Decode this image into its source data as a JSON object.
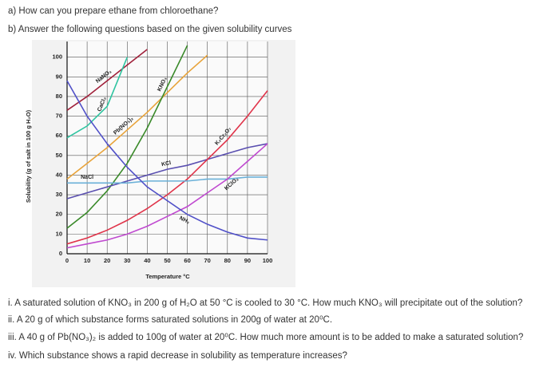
{
  "questions": {
    "a": "a) How can you prepare ethane from chloroethane?",
    "b": "b) Answer the following questions based on the given solubility curves",
    "items": [
      "i. A saturated solution of KNO₃ in 200 g of H₂O at 50 °C is cooled to 30 °C. How much KNO₃ will precipitate out of the solution?",
      "ii. A 20 g of which substance forms saturated solutions in 200g of water at 20⁰C.",
      "iii. A 40 g of Pb(NO₃)₂ is added to 100g of water at 20⁰C. How much more amount is to be added to make a saturated solution?",
      "iv. Which substance shows a rapid decrease in solubility as temperature increases?"
    ]
  },
  "chart_data": {
    "type": "line",
    "x_label": "Temperature °C",
    "y_label": "Solubility (g of salt in 100 g H₂O)",
    "x": [
      0,
      10,
      20,
      30,
      40,
      50,
      60,
      70,
      80,
      90,
      100
    ],
    "xlim": [
      0,
      100
    ],
    "xticks": [
      0,
      10,
      20,
      30,
      40,
      50,
      60,
      70,
      80,
      90,
      100
    ],
    "ylim": [
      0,
      108
    ],
    "yticks": [
      0,
      10,
      20,
      30,
      40,
      50,
      60,
      70,
      80,
      90,
      100
    ],
    "grid": true,
    "series": [
      {
        "name": "NaNO₃",
        "color": "#a0203a",
        "values": [
          73,
          80,
          88,
          96,
          104,
          null,
          null,
          null,
          null,
          null,
          null
        ]
      },
      {
        "name": "CaCl₂",
        "color": "#2ec4a0",
        "values": [
          59,
          65,
          75,
          100,
          null,
          null,
          null,
          null,
          null,
          null,
          null
        ]
      },
      {
        "name": "Pb(NO₃)₂",
        "color": "#e8a33a",
        "values": [
          38,
          46,
          54,
          63,
          72,
          82,
          92,
          101,
          null,
          null,
          null
        ]
      },
      {
        "name": "KNO₃",
        "color": "#3a8a2a",
        "values": [
          13,
          21,
          32,
          46,
          64,
          85,
          106,
          null,
          null,
          null,
          null
        ]
      },
      {
        "name": "KCl",
        "color": "#5a4fb0",
        "values": [
          28,
          31,
          34,
          37,
          40,
          43,
          45,
          48,
          51,
          54,
          56
        ]
      },
      {
        "name": "K₂Cr₂O₇",
        "color": "#e0344a",
        "values": [
          5,
          8,
          12,
          17,
          23,
          30,
          38,
          48,
          58,
          70,
          83
        ]
      },
      {
        "name": "NaCl",
        "color": "#6ab0d8",
        "values": [
          36,
          36,
          36,
          36,
          37,
          37,
          37,
          38,
          38,
          39,
          39
        ]
      },
      {
        "name": "KClO₃",
        "color": "#c04ad0",
        "values": [
          3,
          5,
          7,
          10,
          14,
          19,
          24,
          31,
          38,
          47,
          56
        ]
      },
      {
        "name": "NH₃",
        "color": "#5050c8",
        "values": [
          88,
          70,
          56,
          44,
          34,
          27,
          20,
          15,
          11,
          8,
          7
        ]
      }
    ]
  }
}
